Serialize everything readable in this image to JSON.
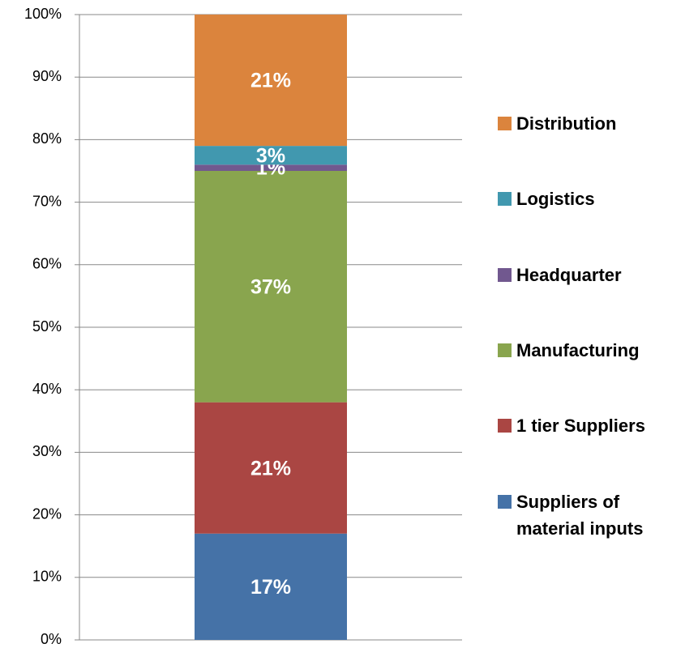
{
  "chart_data": {
    "type": "stacked_bar",
    "categories": [
      null
    ],
    "series": [
      {
        "name": "Suppliers of material inputs",
        "color": "#4572a7",
        "values": [
          17
        ],
        "value_labels": [
          "17%"
        ]
      },
      {
        "name": "1 tier Suppliers",
        "color": "#aa4643",
        "values": [
          21
        ],
        "value_labels": [
          "21%"
        ]
      },
      {
        "name": "Manufacturing",
        "color": "#89a54e",
        "values": [
          37
        ],
        "value_labels": [
          "37%"
        ]
      },
      {
        "name": "Headquarter",
        "color": "#71588f",
        "values": [
          1
        ],
        "value_labels": [
          "1%"
        ]
      },
      {
        "name": "Logistics",
        "color": "#4198af",
        "values": [
          3
        ],
        "value_labels": [
          "3%"
        ]
      },
      {
        "name": "Distribution",
        "color": "#db843d",
        "values": [
          21
        ],
        "value_labels": [
          "21%"
        ]
      }
    ],
    "ylim": [
      0,
      100
    ],
    "yticks": [
      {
        "value": 0,
        "label": "0%"
      },
      {
        "value": 10,
        "label": "10%"
      },
      {
        "value": 20,
        "label": "20%"
      },
      {
        "value": 30,
        "label": "30%"
      },
      {
        "value": 40,
        "label": "40%"
      },
      {
        "value": 50,
        "label": "50%"
      },
      {
        "value": 60,
        "label": "60%"
      },
      {
        "value": 70,
        "label": "70%"
      },
      {
        "value": 80,
        "label": "80%"
      },
      {
        "value": 90,
        "label": "90%"
      },
      {
        "value": 100,
        "label": "100%"
      }
    ],
    "grid": true,
    "legend": "right"
  }
}
